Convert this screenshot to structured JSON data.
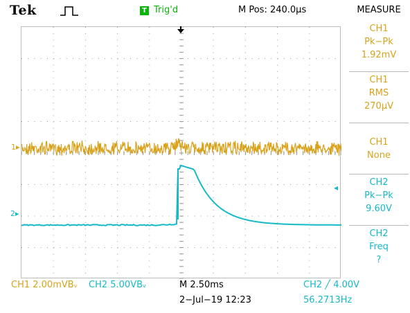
{
  "header": {
    "brand": "Tek",
    "acquisition_icon": "square-pulse-icon",
    "trigger_badge": "T",
    "trigger_status": "Trig'd",
    "main_position": "M Pos: 240.0µs",
    "measure_title": "MEASURE"
  },
  "waveform": {
    "ch1_marker": "1▸",
    "ch2_marker": "2▸",
    "trigger_level_marker": "◂",
    "ch1_color": "#d9a21a",
    "ch2_color": "#16b9c8",
    "grid_color": "#9a9a9a"
  },
  "measurements": [
    {
      "source": "CH1",
      "type": "Pk−Pk",
      "value": "1.92mV",
      "color": "#d9a21a"
    },
    {
      "source": "CH1",
      "type": "RMS",
      "value": "270µV",
      "color": "#d9a21a"
    },
    {
      "source": "CH1",
      "type": "None",
      "value": "",
      "color": "#d9a21a"
    },
    {
      "source": "CH2",
      "type": "Pk−Pk",
      "value": "9.60V",
      "color": "#16b9c8"
    },
    {
      "source": "CH2",
      "type": "Freq",
      "value": "?",
      "color": "#16b9c8"
    }
  ],
  "footer": {
    "ch1_scale": "CH1  2.00mVBᵥ",
    "ch2_scale": "CH2  5.00VBᵥ",
    "timebase": "M 2.50ms",
    "trigger_setting": "CH2 ╱ 4.00V",
    "date_time": "2−Jul−19 12:23",
    "frequency": "56.2713Hz"
  }
}
